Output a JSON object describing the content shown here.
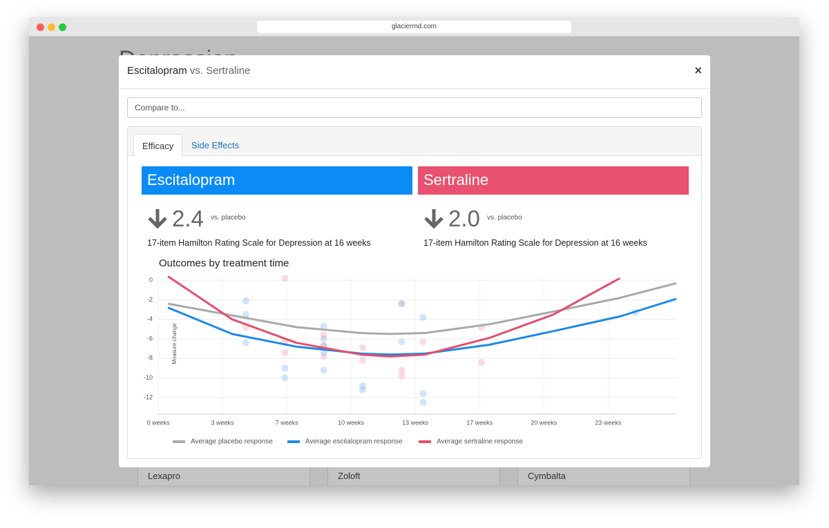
{
  "browser": {
    "url": "glaciermd.com"
  },
  "background": {
    "title": "Depression",
    "cards": [
      "Lexapro",
      "Zoloft",
      "Cymbalta"
    ]
  },
  "modal": {
    "title": {
      "drug": "Escitalopram",
      "comparison": "vs. Sertraline"
    },
    "close": "×",
    "compare_placeholder": "Compare to...",
    "tabs": [
      "Efficacy",
      "Side Effects"
    ],
    "drugs": [
      {
        "name": "Escitalopram",
        "value": "2.4",
        "suffix": "vs. placebo",
        "description": "17-item Hamilton Rating Scale for Depression at 16 weeks"
      },
      {
        "name": "Sertraline",
        "value": "2.0",
        "suffix": "vs. placebo",
        "description": "17-item Hamilton Rating Scale for Depression at 16 weeks"
      }
    ]
  },
  "chart_data": {
    "type": "line",
    "title": "Outcomes by treatment time",
    "y_label": "Measure change",
    "x": [
      0.5,
      3.8,
      7.1,
      10.4,
      11.9,
      13.7,
      17,
      20.3,
      23.7,
      26.6
    ],
    "series": [
      {
        "name": "Average placebo response",
        "color": "#a9a9a9",
        "values": [
          -2.4,
          -3.6,
          -4.8,
          -5.4,
          -5.5,
          -5.4,
          -4.5,
          -3.2,
          -1.8,
          -0.3
        ]
      },
      {
        "name": "Average escitalopram response",
        "color": "#1e88e5",
        "values": [
          -2.8,
          -5.5,
          -6.8,
          -7.5,
          -7.6,
          -7.5,
          -6.6,
          -5.2,
          -3.7,
          -1.9
        ]
      },
      {
        "name": "Average sertraline response",
        "color": "#e0506e",
        "values": [
          0.4,
          -4.0,
          -6.4,
          -7.6,
          -7.8,
          -7.6,
          -5.9,
          -3.5,
          0.2,
          null
        ]
      }
    ],
    "scatter": [
      {
        "color": "#64a8f0",
        "x": [
          4.5,
          4.5,
          4.5,
          6.5,
          6.5,
          8.5,
          8.5,
          8.5,
          8.5,
          8.5,
          10.5,
          10.5,
          12.5,
          12.5,
          13.6,
          13.6,
          13.6,
          24.5
        ],
        "values": [
          -2.1,
          -3.5,
          -6.4,
          -9,
          -10,
          -4.7,
          -6,
          -6.7,
          -7.4,
          -9.2,
          -10.8,
          -11.2,
          -2.4,
          -6.3,
          -3.8,
          -11.6,
          -12.5,
          -3.3
        ]
      },
      {
        "color": "#e88aa0",
        "x": [
          4.5,
          6.5,
          6.5,
          6.5,
          8.5,
          8.5,
          8.5,
          10.5,
          10.5,
          12.5,
          12.5,
          12.5,
          13.6,
          16.6,
          16.6
        ],
        "values": [
          -4.8,
          0.2,
          -6.3,
          -7.4,
          -5.6,
          -6.7,
          -7.8,
          -6.9,
          -8.2,
          -2.4,
          -9.2,
          -9.8,
          -6.3,
          -4.8,
          -8.4
        ]
      }
    ],
    "xlim": [
      0,
      26.6
    ],
    "ylim": [
      -13.7,
      0.5
    ],
    "xticks": [
      {
        "value": 0,
        "label": "0 weeks"
      },
      {
        "value": 3.3,
        "label": "3 weeks"
      },
      {
        "value": 6.6,
        "label": "7 weeks"
      },
      {
        "value": 9.9,
        "label": "10 weeks"
      },
      {
        "value": 13.2,
        "label": "13 weeks"
      },
      {
        "value": 16.5,
        "label": "17 weeks"
      },
      {
        "value": 19.8,
        "label": "20 weeks"
      },
      {
        "value": 23.1,
        "label": "23 weeks"
      }
    ],
    "yticks": [
      0,
      -2,
      -4,
      -6,
      -8,
      -10,
      -12
    ],
    "grid": true
  }
}
